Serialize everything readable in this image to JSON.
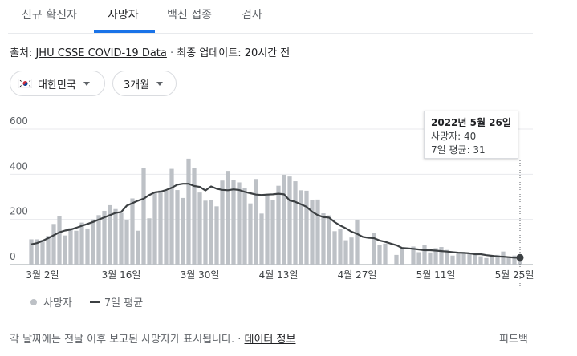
{
  "tabs": [
    {
      "label": "신규 확진자",
      "active": false
    },
    {
      "label": "사망자",
      "active": true
    },
    {
      "label": "백신 접종",
      "active": false
    },
    {
      "label": "검사",
      "active": false
    }
  ],
  "source": {
    "prefix": "출처:",
    "link": "JHU CSSE COVID-19 Data",
    "separator": "·",
    "updated": "최종 업데이트: 20시간 전"
  },
  "filters": {
    "country": "대한민국",
    "country_flag_icon": "korea-flag-icon",
    "range": "3개월"
  },
  "tooltip": {
    "date": "2022년 5월 26일",
    "deaths": "사망자: 40",
    "avg": "7일 평균: 31"
  },
  "legend": {
    "bars": "사망자",
    "line": "7일 평균"
  },
  "footer": {
    "note": "각 날짜에는 전날 이후 보고된 사망자가 표시됩니다.",
    "separator": "·",
    "link": "데이터 정보",
    "feedback": "피드백"
  },
  "colors": {
    "bar": "#bdc1c6",
    "line": "#3c4043",
    "accent": "#1a73e8"
  },
  "chart_data": {
    "type": "bar",
    "xlabel": "",
    "ylabel": "",
    "ylim": [
      0,
      600
    ],
    "yticks": [
      0,
      200,
      400,
      600
    ],
    "xtick_labels": [
      {
        "label": "3월 2일",
        "index": 2
      },
      {
        "label": "3월 16일",
        "index": 16
      },
      {
        "label": "3월 30일",
        "index": 30
      },
      {
        "label": "4월 13일",
        "index": 44
      },
      {
        "label": "4월 27일",
        "index": 58
      },
      {
        "label": "5월 11일",
        "index": 72
      },
      {
        "label": "5월 25일",
        "index": 86
      }
    ],
    "first_date": "2022-02-28",
    "last_date": "2022-05-26",
    "grid": true,
    "legend_position": "bottom-left",
    "series": [
      {
        "name": "사망자",
        "type": "bar",
        "values": [
          112,
          112,
          110,
          127,
          180,
          214,
          129,
          162,
          150,
          186,
          160,
          200,
          219,
          238,
          263,
          246,
          229,
          197,
          293,
          150,
          428,
          205,
          319,
          328,
          327,
          424,
          330,
          295,
          469,
          429,
          319,
          283,
          286,
          258,
          372,
          415,
          373,
          364,
          338,
          271,
          379,
          226,
          309,
          285,
          349,
          398,
          390,
          369,
          329,
          327,
          287,
          288,
          227,
          218,
          148,
          157,
          108,
          120,
          199,
          161,
          146,
          140,
          88,
          93,
          76,
          43,
          74,
          88,
          80,
          55,
          86,
          54,
          73,
          78,
          65,
          40,
          49,
          49,
          53,
          45,
          37,
          29,
          41,
          43,
          58,
          34,
          40,
          40
        ],
        "missing": [
          59,
          60,
          64,
          67
        ]
      },
      {
        "name": "7일 평균",
        "type": "line",
        "values": [
          90,
          95,
          105,
          117,
          130,
          143,
          151,
          155,
          163,
          172,
          180,
          189,
          199,
          209,
          219,
          229,
          233,
          261,
          272,
          283,
          292,
          308,
          320,
          323,
          330,
          340,
          354,
          358,
          358,
          348,
          344,
          328,
          346,
          336,
          331,
          329,
          333,
          330,
          322,
          316,
          310,
          308,
          310,
          311,
          314,
          311,
          284,
          278,
          267,
          256,
          234,
          219,
          210,
          208,
          188,
          173,
          161,
          146,
          136,
          123,
          119,
          117,
          107,
          101,
          93,
          86,
          74,
          72,
          70,
          67,
          64,
          64,
          62,
          60,
          58,
          55,
          53,
          52,
          50,
          46,
          46,
          42,
          39,
          36,
          35,
          33,
          31,
          31
        ]
      }
    ]
  }
}
